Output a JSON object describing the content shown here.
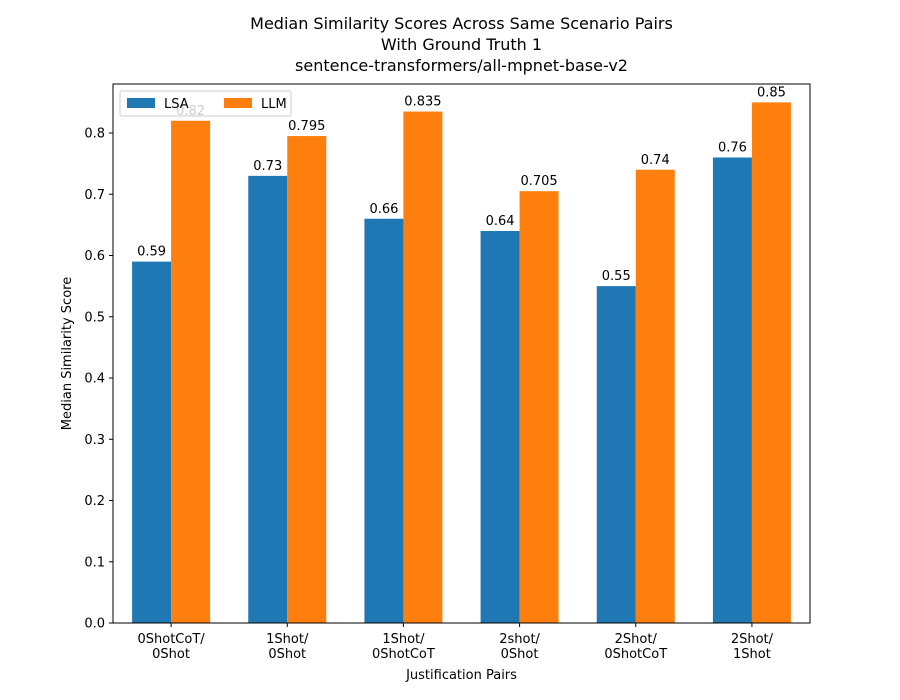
{
  "chart_data": {
    "type": "bar",
    "title": [
      "Median Similarity Scores Across Same Scenario Pairs",
      "With Ground Truth 1",
      "sentence-transformers/all-mpnet-base-v2"
    ],
    "xlabel": "Justification Pairs",
    "ylabel": "Median Similarity Score",
    "categories": [
      [
        "0ShotCoT/",
        "0Shot"
      ],
      [
        "1Shot/",
        "0Shot"
      ],
      [
        "1Shot/",
        "0ShotCoT"
      ],
      [
        "2shot/",
        "0Shot"
      ],
      [
        "2Shot/",
        "0ShotCoT"
      ],
      [
        "2Shot/",
        "1Shot"
      ]
    ],
    "series": [
      {
        "name": "LSA",
        "color": "#1f77b4",
        "values": [
          0.59,
          0.73,
          0.66,
          0.64,
          0.55,
          0.76
        ],
        "labels": [
          "0.59",
          "0.73",
          "0.66",
          "0.64",
          "0.55",
          "0.76"
        ]
      },
      {
        "name": "LLM",
        "color": "#ff7f0e",
        "values": [
          0.82,
          0.795,
          0.835,
          0.705,
          0.74,
          0.85
        ],
        "labels": [
          "0.82",
          "0.795",
          "0.835",
          "0.705",
          "0.74",
          "0.85"
        ]
      }
    ],
    "ylim": [
      0,
      0.88
    ],
    "yticks": [
      0.0,
      0.1,
      0.2,
      0.3,
      0.4,
      0.5,
      0.6,
      0.7,
      0.8
    ],
    "ytick_labels": [
      "0.0",
      "0.1",
      "0.2",
      "0.3",
      "0.4",
      "0.5",
      "0.6",
      "0.7",
      "0.8"
    ],
    "legend": "top-left",
    "grid": false
  }
}
